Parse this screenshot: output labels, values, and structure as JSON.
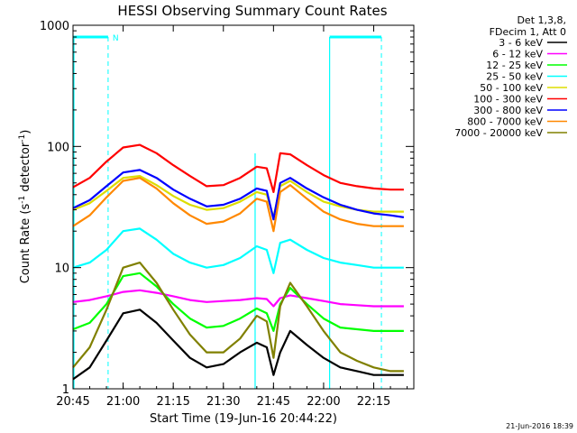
{
  "chart_data": {
    "type": "line",
    "title": "HESSI Observing Summary Count Rates",
    "xlabel": "Start Time (19-Jun-16 20:44:22)",
    "ylabel": "Count Rate (s",
    "ylabel_sup1": "-1",
    "ylabel_mid": " detector",
    "ylabel_sup2": "-1",
    "ylabel_end": ")",
    "yscale": "log",
    "ylim": [
      1,
      1000
    ],
    "xlim_minutes": [
      0,
      102
    ],
    "x_ticks": [
      {
        "label": "20:45",
        "minute": 0
      },
      {
        "label": "21:00",
        "minute": 15
      },
      {
        "label": "21:15",
        "minute": 30
      },
      {
        "label": "21:30",
        "minute": 45
      },
      {
        "label": "21:45",
        "minute": 60
      },
      {
        "label": "22:00",
        "minute": 75
      },
      {
        "label": "22:15",
        "minute": 90
      }
    ],
    "y_ticks": [
      {
        "label": "1",
        "value": 1
      },
      {
        "label": "10",
        "value": 10
      },
      {
        "label": "100",
        "value": 100
      },
      {
        "label": "1000",
        "value": 1000
      }
    ],
    "legend_header": [
      "Det 1,3,8,",
      "FDecim 1, Att 0"
    ],
    "legend_position": "right",
    "night_marker_label": "N",
    "series": [
      {
        "name": "3 - 6 keV",
        "color": "#000000",
        "x": [
          0,
          5,
          10,
          15,
          20,
          25,
          30,
          35,
          40,
          45,
          50,
          55,
          58,
          60,
          62,
          65,
          70,
          75,
          80,
          85,
          90,
          95,
          99
        ],
        "y": [
          1.2,
          1.5,
          2.5,
          4.2,
          4.5,
          3.5,
          2.5,
          1.8,
          1.5,
          1.6,
          2.0,
          2.4,
          2.2,
          1.3,
          2.0,
          3.0,
          2.3,
          1.8,
          1.5,
          1.4,
          1.3,
          1.3,
          1.3
        ]
      },
      {
        "name": "6 - 12 keV",
        "color": "#ff00ff",
        "x": [
          0,
          5,
          10,
          15,
          20,
          25,
          30,
          35,
          40,
          45,
          50,
          55,
          58,
          60,
          62,
          65,
          70,
          75,
          80,
          85,
          90,
          95,
          99
        ],
        "y": [
          5.2,
          5.4,
          5.8,
          6.3,
          6.5,
          6.2,
          5.8,
          5.4,
          5.2,
          5.3,
          5.4,
          5.6,
          5.5,
          4.8,
          5.6,
          5.9,
          5.6,
          5.3,
          5.0,
          4.9,
          4.8,
          4.8,
          4.8
        ]
      },
      {
        "name": "12 - 25 keV",
        "color": "#00ff00",
        "x": [
          0,
          5,
          10,
          15,
          20,
          25,
          30,
          35,
          40,
          45,
          50,
          55,
          58,
          60,
          62,
          65,
          70,
          75,
          80,
          85,
          90,
          95,
          99
        ],
        "y": [
          3.1,
          3.5,
          5.0,
          8.5,
          9.0,
          7.0,
          5.0,
          3.8,
          3.2,
          3.3,
          3.8,
          4.6,
          4.2,
          3.0,
          5.0,
          6.8,
          5.0,
          3.8,
          3.2,
          3.1,
          3.0,
          3.0,
          3.0
        ]
      },
      {
        "name": "25 - 50 keV",
        "color": "#00ffff",
        "x": [
          0,
          5,
          10,
          15,
          20,
          25,
          30,
          35,
          40,
          45,
          50,
          55,
          58,
          60,
          62,
          65,
          70,
          75,
          80,
          85,
          90,
          95,
          99
        ],
        "y": [
          10,
          11,
          14,
          20,
          21,
          17,
          13,
          11,
          10,
          10.5,
          12,
          15,
          14,
          9,
          16,
          17,
          14,
          12,
          11,
          10.5,
          10,
          10,
          10
        ]
      },
      {
        "name": "50 - 100 keV",
        "color": "#dddd00",
        "x": [
          0,
          5,
          10,
          15,
          20,
          25,
          30,
          35,
          40,
          45,
          50,
          55,
          58,
          60,
          62,
          65,
          70,
          75,
          80,
          85,
          90,
          95,
          99
        ],
        "y": [
          30,
          34,
          43,
          55,
          57,
          48,
          39,
          33,
          30,
          31,
          35,
          42,
          40,
          26,
          47,
          52,
          42,
          35,
          32,
          30,
          29,
          29,
          29
        ]
      },
      {
        "name": "100 - 300 keV",
        "color": "#ff0000",
        "x": [
          0,
          5,
          10,
          15,
          20,
          25,
          30,
          35,
          40,
          45,
          50,
          55,
          58,
          60,
          62,
          65,
          70,
          75,
          80,
          85,
          90,
          95,
          99
        ],
        "y": [
          46,
          55,
          75,
          98,
          103,
          88,
          70,
          57,
          47,
          48,
          55,
          68,
          66,
          42,
          88,
          86,
          70,
          58,
          50,
          47,
          45,
          44,
          44
        ]
      },
      {
        "name": "300 - 800 keV",
        "color": "#0000ff",
        "x": [
          0,
          5,
          10,
          15,
          20,
          25,
          30,
          35,
          40,
          45,
          50,
          55,
          58,
          60,
          62,
          65,
          70,
          75,
          80,
          85,
          90,
          95,
          99
        ],
        "y": [
          31,
          36,
          47,
          61,
          64,
          55,
          44,
          37,
          32,
          33,
          37,
          45,
          43,
          25,
          50,
          55,
          45,
          38,
          33,
          30,
          28,
          27,
          26
        ]
      },
      {
        "name": "800 - 7000 keV",
        "color": "#ff8800",
        "x": [
          0,
          5,
          10,
          15,
          20,
          25,
          30,
          35,
          40,
          45,
          50,
          55,
          58,
          60,
          62,
          65,
          70,
          75,
          80,
          85,
          90,
          95,
          99
        ],
        "y": [
          22,
          27,
          38,
          52,
          55,
          45,
          34,
          27,
          23,
          24,
          28,
          37,
          35,
          20,
          42,
          48,
          37,
          29,
          25,
          23,
          22,
          22,
          22
        ]
      },
      {
        "name": "7000 - 20000 keV",
        "color": "#808000",
        "x": [
          0,
          5,
          10,
          15,
          20,
          25,
          30,
          35,
          40,
          45,
          50,
          55,
          58,
          60,
          62,
          65,
          70,
          75,
          80,
          85,
          90,
          95,
          99
        ],
        "y": [
          1.5,
          2.2,
          4.5,
          10,
          11,
          7.5,
          4.5,
          2.8,
          2.0,
          2.0,
          2.6,
          4.0,
          3.6,
          1.8,
          4.8,
          7.5,
          4.8,
          3.0,
          2.0,
          1.7,
          1.5,
          1.4,
          1.4
        ]
      }
    ]
  },
  "footer_timestamp": "21-Jun-2016 18:39"
}
